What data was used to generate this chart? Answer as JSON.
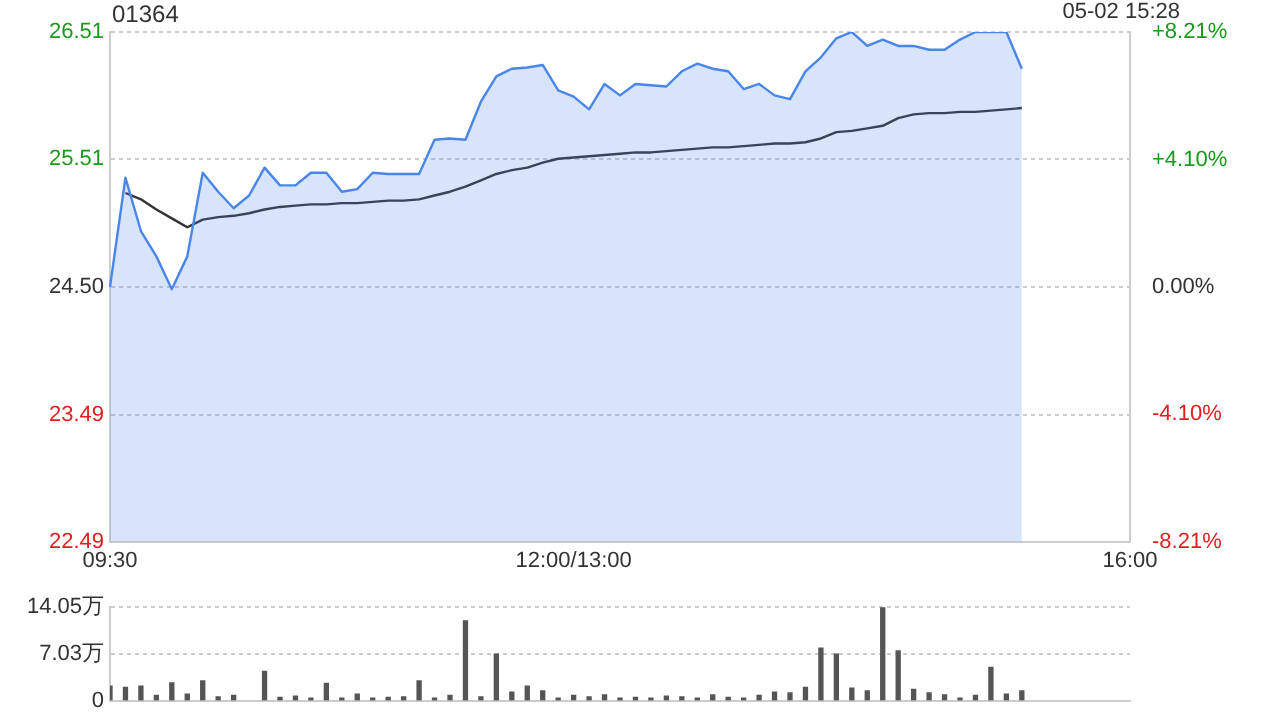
{
  "chart_data": [
    {
      "type": "area",
      "title": "01364",
      "annotations": [
        "05-02 15:28"
      ],
      "categories": [
        "09:30",
        null,
        null,
        null,
        null,
        null,
        null,
        null,
        null,
        null,
        null,
        null,
        null,
        null,
        null,
        null,
        null,
        null,
        null,
        null,
        null,
        null,
        null,
        null,
        null,
        null,
        null,
        null,
        null,
        null,
        "12:00/13:00",
        null,
        null,
        null,
        null,
        null,
        null,
        null,
        null,
        null,
        null,
        null,
        null,
        null,
        null,
        null,
        null,
        null,
        null,
        null,
        null,
        null,
        null,
        null,
        null,
        null,
        null,
        null,
        null,
        null,
        null,
        null,
        null,
        null,
        null,
        null,
        "16:00"
      ],
      "ylim": [
        22.49,
        26.51
      ],
      "yticks": [
        22.49,
        23.49,
        {
          "value": 24.5,
          "label": "24.50"
        },
        25.51,
        26.51
      ],
      "y2lim": [
        -8.21,
        8.21
      ],
      "y2ticks": [
        {
          "value": -8.21,
          "label": "-8.21%"
        },
        {
          "value": -4.1,
          "label": "-4.10%"
        },
        {
          "value": 0,
          "label": "0.00%"
        },
        {
          "value": 4.1,
          "label": "+4.10%"
        },
        {
          "value": 8.21,
          "label": "+8.21%"
        }
      ],
      "grid": "y",
      "marker": "none",
      "series": [
        {
          "color": "#4a86e8",
          "values": [
            24.5,
            25.36,
            24.94,
            24.74,
            24.48,
            24.74,
            25.4,
            25.25,
            25.12,
            25.22,
            25.44,
            25.3,
            25.3,
            25.4,
            25.4,
            25.25,
            25.27,
            25.4,
            25.39,
            25.39,
            25.39,
            25.66,
            25.67,
            25.66,
            25.96,
            26.16,
            26.22,
            26.23,
            26.25,
            26.05,
            26.0,
            25.9,
            26.1,
            26.01,
            26.1,
            26.09,
            26.08,
            26.2,
            26.26,
            26.22,
            26.2,
            26.06,
            26.1,
            26.01,
            25.98,
            26.2,
            26.31,
            26.46,
            26.51,
            26.4,
            26.45,
            26.4,
            26.4,
            26.37,
            26.37,
            26.45,
            26.51,
            26.51,
            26.51,
            26.22,
            null,
            null,
            null,
            null,
            null,
            null,
            null
          ]
        },
        {
          "type": "line",
          "color": "#333333",
          "values": [
            null,
            25.24,
            25.19,
            25.11,
            25.04,
            24.97,
            25.03,
            25.05,
            25.06,
            25.08,
            25.11,
            25.13,
            25.14,
            25.15,
            25.15,
            25.16,
            25.16,
            25.17,
            25.18,
            25.18,
            25.19,
            25.22,
            25.25,
            25.29,
            25.34,
            25.39,
            25.42,
            25.44,
            25.48,
            25.51,
            25.52,
            25.53,
            25.54,
            25.55,
            25.56,
            25.56,
            25.57,
            25.58,
            25.59,
            25.6,
            25.6,
            25.61,
            25.62,
            25.63,
            25.63,
            25.64,
            25.67,
            25.72,
            25.73,
            25.75,
            25.77,
            25.83,
            25.86,
            25.87,
            25.87,
            25.88,
            25.88,
            25.89,
            25.9,
            25.91,
            null,
            null,
            null,
            null,
            null,
            null,
            null
          ]
        }
      ]
    },
    {
      "type": "bar",
      "tick_labels": "y",
      "categories": [
        null,
        null,
        null,
        null,
        null,
        null,
        null,
        null,
        null,
        null,
        null,
        null,
        null,
        null,
        null,
        null,
        null,
        null,
        null,
        null,
        null,
        null,
        null,
        null,
        null,
        null,
        null,
        null,
        null,
        null,
        null,
        null,
        null,
        null,
        null,
        null,
        null,
        null,
        null,
        null,
        null,
        null,
        null,
        null,
        null,
        null,
        null,
        null,
        null,
        null,
        null,
        null,
        null,
        null,
        null,
        null,
        null,
        null,
        null,
        null,
        null,
        null,
        null,
        null,
        null,
        null,
        null
      ],
      "ylim": [
        0,
        14.05
      ],
      "yticks": [
        0,
        {
          "value": 7.03,
          "label": "7.03万"
        },
        {
          "value": 14.05,
          "label": "14.05万"
        }
      ],
      "grid": "y",
      "series": [
        {
          "color": "#555555",
          "values": [
            2.2,
            2.0,
            2.2,
            0.8,
            2.7,
            1.0,
            3.0,
            0.6,
            0.8,
            null,
            4.4,
            0.5,
            0.7,
            0.4,
            2.6,
            0.4,
            1.0,
            0.4,
            0.5,
            0.6,
            3.0,
            0.4,
            0.8,
            12.0,
            0.6,
            7.0,
            1.3,
            2.2,
            1.5,
            0.4,
            0.8,
            0.6,
            0.9,
            0.4,
            0.5,
            0.4,
            0.7,
            0.6,
            0.4,
            0.9,
            0.5,
            0.4,
            0.8,
            1.3,
            1.2,
            2.0,
            7.9,
            7.0,
            1.9,
            1.5,
            14.0,
            7.5,
            1.7,
            1.2,
            0.9,
            0.4,
            0.8,
            5.0,
            1.0,
            1.5,
            null,
            null,
            null,
            null,
            null,
            null,
            null
          ]
        }
      ]
    }
  ]
}
